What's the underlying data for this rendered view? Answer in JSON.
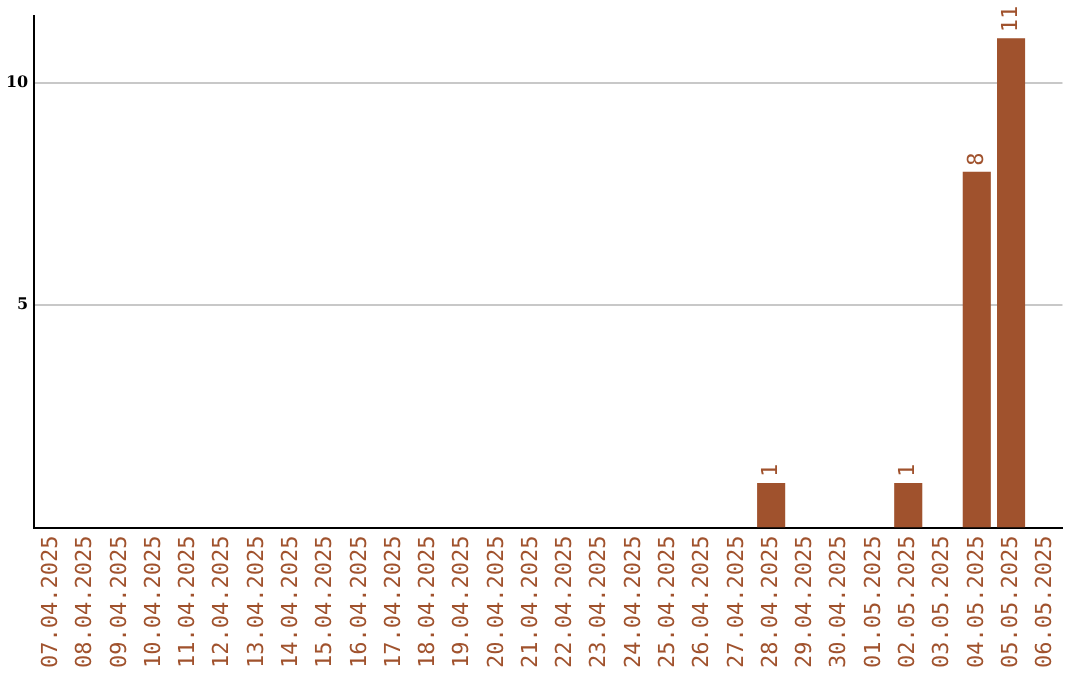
{
  "chart_data": {
    "type": "bar",
    "categories": [
      "07.04.2025",
      "08.04.2025",
      "09.04.2025",
      "10.04.2025",
      "11.04.2025",
      "12.04.2025",
      "13.04.2025",
      "14.04.2025",
      "15.04.2025",
      "16.04.2025",
      "17.04.2025",
      "18.04.2025",
      "19.04.2025",
      "20.04.2025",
      "21.04.2025",
      "22.04.2025",
      "23.04.2025",
      "24.04.2025",
      "25.04.2025",
      "26.04.2025",
      "27.04.2025",
      "28.04.2025",
      "29.04.2025",
      "30.04.2025",
      "01.05.2025",
      "02.05.2025",
      "03.05.2025",
      "04.05.2025",
      "05.05.2025",
      "06.05.2025"
    ],
    "values": [
      0,
      0,
      0,
      0,
      0,
      0,
      0,
      0,
      0,
      0,
      0,
      0,
      0,
      0,
      0,
      0,
      0,
      0,
      0,
      0,
      0,
      1,
      0,
      0,
      0,
      1,
      0,
      8,
      11,
      0
    ],
    "value_labels": [
      null,
      null,
      null,
      null,
      null,
      null,
      null,
      null,
      null,
      null,
      null,
      null,
      null,
      null,
      null,
      null,
      null,
      null,
      null,
      null,
      null,
      "1",
      null,
      null,
      null,
      "1",
      null,
      "8",
      "11",
      null
    ],
    "color": "#a0522d",
    "ylim": [
      0,
      11.5
    ],
    "yticks": [
      5,
      10
    ],
    "grid": "y",
    "legend": false
  }
}
